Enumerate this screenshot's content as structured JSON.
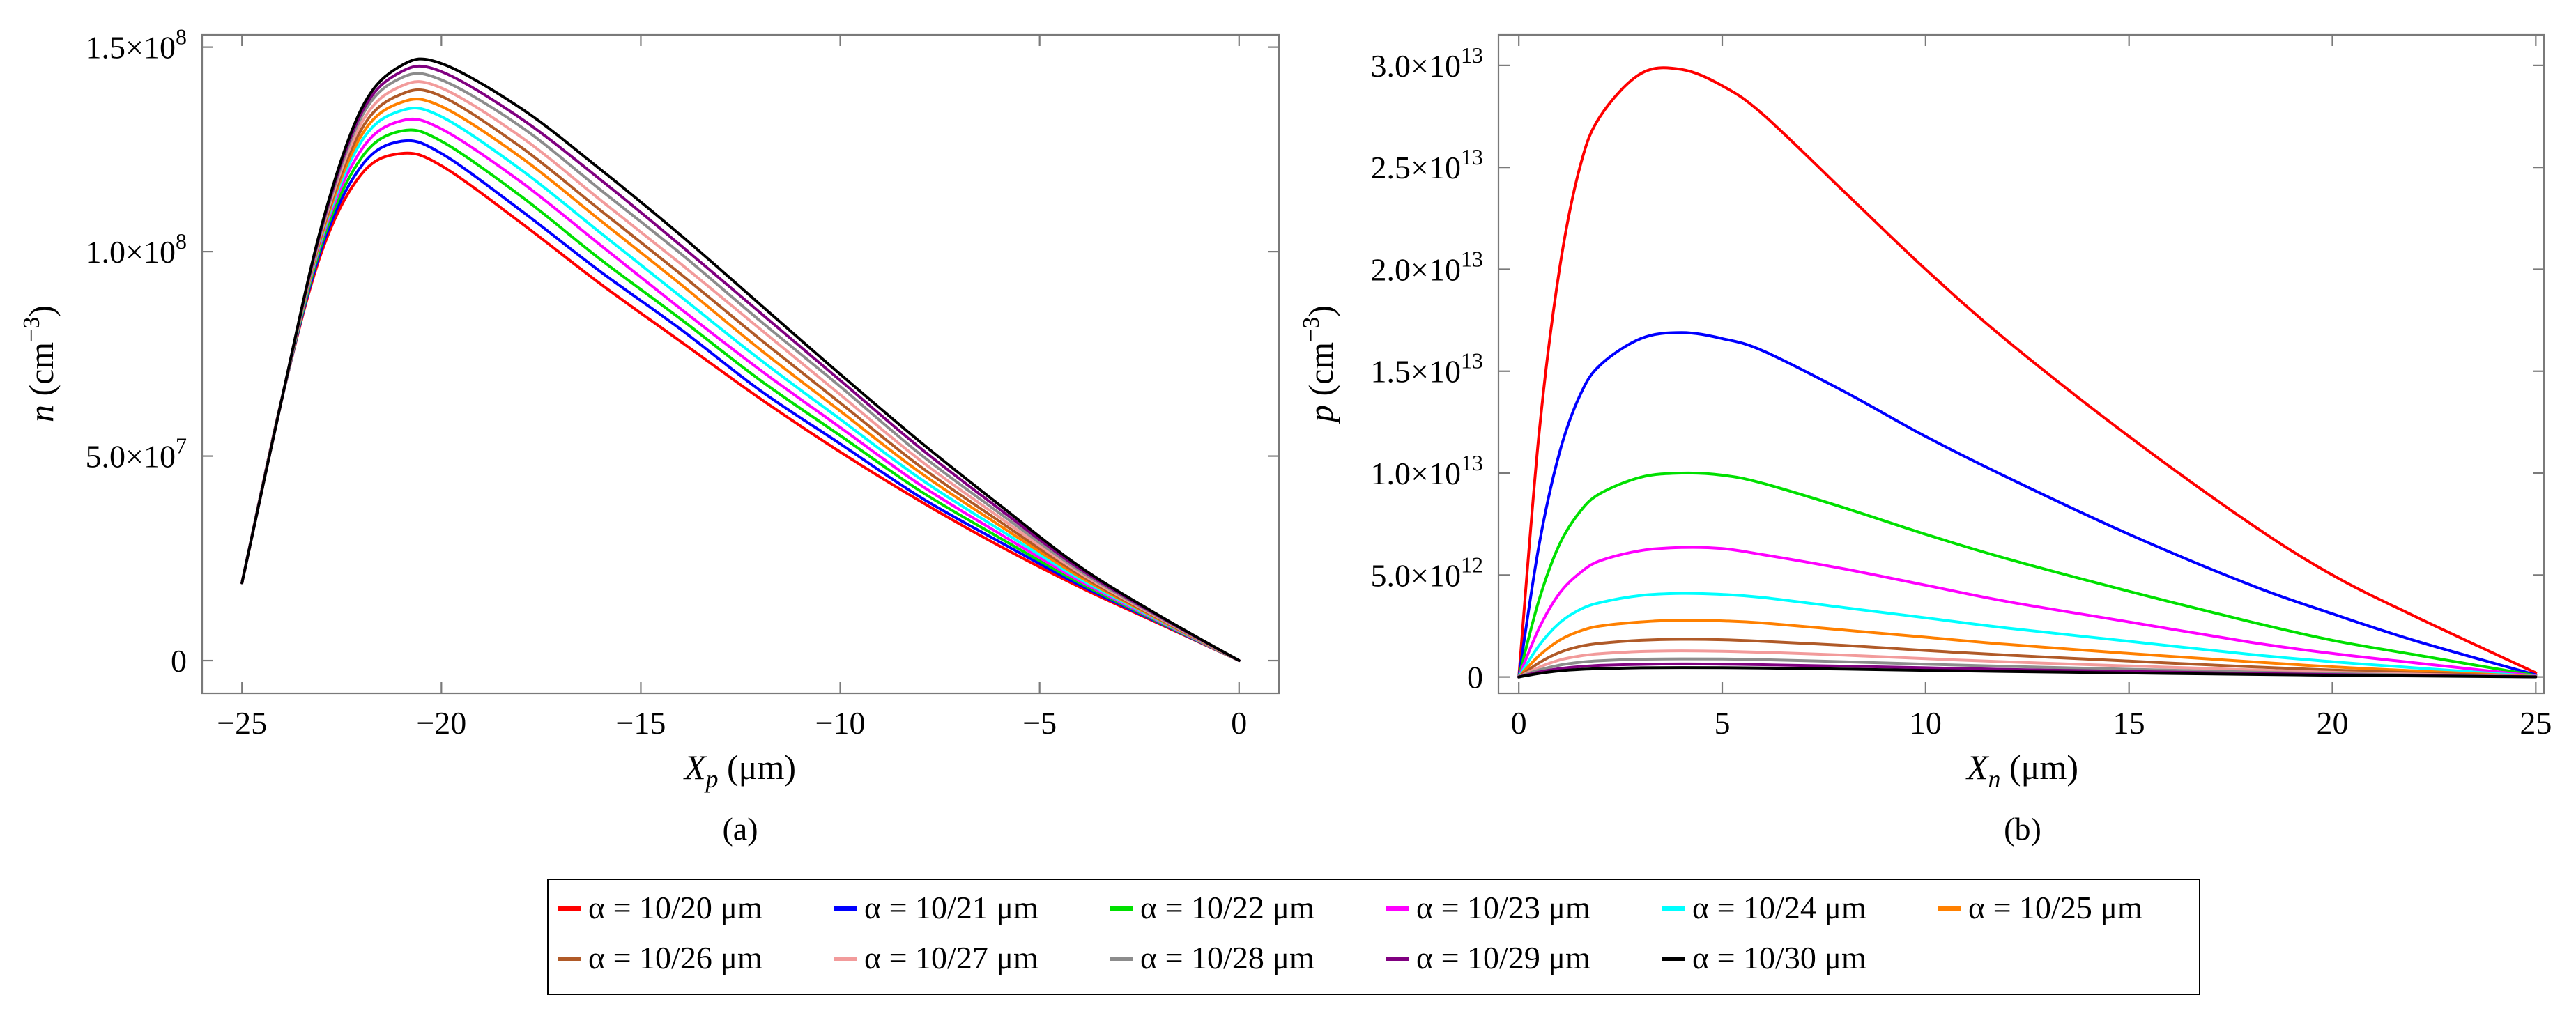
{
  "colors": [
    "#ff0000",
    "#0000ff",
    "#00e000",
    "#ff00ff",
    "#00ffff",
    "#ff8000",
    "#b05a28",
    "#f29b9b",
    "#8c8c8c",
    "#800080",
    "#000000"
  ],
  "legend": {
    "entries": [
      "α = 10/20 μm",
      "α = 10/21 μm",
      "α = 10/22 μm",
      "α = 10/23 μm",
      "α = 10/24 μm",
      "α = 10/25 μm",
      "α = 10/26 μm",
      "α = 10/27 μm",
      "α = 10/28 μm",
      "α = 10/29 μm",
      "α = 10/30 μm"
    ]
  },
  "chart_data": [
    {
      "type": "line",
      "caption": "(a)",
      "xlabel": "X",
      "xlabel_sub": "p",
      "xlabel_unit": " (μm)",
      "ylabel": "n",
      "ylabel_unit": " (cm",
      "ylabel_sup": "−3",
      "ylabel_close": ")",
      "xlim": [
        -26.0,
        1.0
      ],
      "ylim": [
        -8000000,
        153000000
      ],
      "x_ticks": [
        -25,
        -20,
        -15,
        -10,
        -5,
        0
      ],
      "x_tick_labels": [
        "−25",
        "−20",
        "−15",
        "−10",
        "−5",
        "0"
      ],
      "y_ticks": [
        0,
        50000000,
        100000000,
        150000000
      ],
      "y_tick_labels": [
        {
          "mantissa": "0",
          "power": ""
        },
        {
          "mantissa": "5.0×10",
          "power": "7"
        },
        {
          "mantissa": "1.0×10",
          "power": "8"
        },
        {
          "mantissa": "1.5×10",
          "power": "8"
        }
      ],
      "series": [
        {
          "name": "α = 10/20 μm",
          "x": [
            -25,
            -24,
            -23,
            -22,
            -21,
            -20,
            -18,
            -16,
            -14,
            -12,
            -10,
            -8,
            -6,
            -4,
            -2,
            0
          ],
          "values": [
            19000000,
            64000000,
            100000000,
            119000000,
            124000000,
            121000000,
            107000000,
            92000000,
            78000000,
            64000000,
            51000000,
            39000000,
            28000000,
            18000000,
            9000000,
            0
          ]
        },
        {
          "name": "α = 10/21 μm",
          "x": [
            -25,
            -24,
            -23,
            -22,
            -21,
            -20,
            -18,
            -16,
            -14,
            -12,
            -10,
            -8,
            -6,
            -4,
            -2,
            0
          ],
          "values": [
            19000000,
            64000000,
            101000000,
            121000000,
            127000000,
            124000000,
            110000000,
            95000000,
            81000000,
            66000000,
            53000000,
            40000000,
            29000000,
            18500000,
            9200000,
            0
          ]
        },
        {
          "name": "α = 10/22 μm",
          "x": [
            -25,
            -24,
            -23,
            -22,
            -21,
            -20,
            -18,
            -16,
            -14,
            -12,
            -10,
            -8,
            -6,
            -4,
            -2,
            0
          ],
          "values": [
            19000000,
            64000000,
            102000000,
            123000000,
            129500000,
            127000000,
            113500000,
            98000000,
            83500000,
            68500000,
            55000000,
            41500000,
            30000000,
            19000000,
            9400000,
            0
          ]
        },
        {
          "name": "α = 10/23 μm",
          "x": [
            -25,
            -24,
            -23,
            -22,
            -21,
            -20,
            -18,
            -16,
            -14,
            -12,
            -10,
            -8,
            -6,
            -4,
            -2,
            0
          ],
          "values": [
            19000000,
            64000000,
            103000000,
            125000000,
            132000000,
            130000000,
            117000000,
            101500000,
            86000000,
            71000000,
            57000000,
            43000000,
            31000000,
            19500000,
            9600000,
            0
          ]
        },
        {
          "name": "α = 10/24 μm",
          "x": [
            -25,
            -24,
            -23,
            -22,
            -21,
            -20,
            -18,
            -16,
            -14,
            -12,
            -10,
            -8,
            -6,
            -4,
            -2,
            0
          ],
          "values": [
            19000000,
            64000000,
            103500000,
            127000000,
            134500000,
            133000000,
            120000000,
            104500000,
            89000000,
            73500000,
            59000000,
            44500000,
            32000000,
            20000000,
            9800000,
            0
          ]
        },
        {
          "name": "α = 10/25 μm",
          "x": [
            -25,
            -24,
            -23,
            -22,
            -21,
            -20,
            -18,
            -16,
            -14,
            -12,
            -10,
            -8,
            -6,
            -4,
            -2,
            0
          ],
          "values": [
            19000000,
            64000000,
            104000000,
            128500000,
            136500000,
            135500000,
            123000000,
            107500000,
            92000000,
            76000000,
            61000000,
            46000000,
            33000000,
            20500000,
            10000000,
            0
          ]
        },
        {
          "name": "α = 10/26 μm",
          "x": [
            -25,
            -24,
            -23,
            -22,
            -21,
            -20,
            -18,
            -16,
            -14,
            -12,
            -10,
            -8,
            -6,
            -4,
            -2,
            0
          ],
          "values": [
            19000000,
            64000000,
            104500000,
            130000000,
            138500000,
            138000000,
            125500000,
            110000000,
            94500000,
            78500000,
            63000000,
            47500000,
            34000000,
            21000000,
            10200000,
            0
          ]
        },
        {
          "name": "α = 10/27 μm",
          "x": [
            -25,
            -24,
            -23,
            -22,
            -21,
            -20,
            -18,
            -16,
            -14,
            -12,
            -10,
            -8,
            -6,
            -4,
            -2,
            0
          ],
          "values": [
            19000000,
            64000000,
            105000000,
            131500000,
            140500000,
            140000000,
            128000000,
            112500000,
            97000000,
            81000000,
            65000000,
            49000000,
            35000000,
            21500000,
            10400000,
            0
          ]
        },
        {
          "name": "α = 10/28 μm",
          "x": [
            -25,
            -24,
            -23,
            -22,
            -21,
            -20,
            -18,
            -16,
            -14,
            -12,
            -10,
            -8,
            -6,
            -4,
            -2,
            0
          ],
          "values": [
            19000000,
            64000000,
            105500000,
            133000000,
            142500000,
            142000000,
            130500000,
            115000000,
            99500000,
            83000000,
            67000000,
            50500000,
            36000000,
            22000000,
            10600000,
            0
          ]
        },
        {
          "name": "α = 10/29 μm",
          "x": [
            -25,
            -24,
            -23,
            -22,
            -21,
            -20,
            -18,
            -16,
            -14,
            -12,
            -10,
            -8,
            -6,
            -4,
            -2,
            0
          ],
          "values": [
            19000000,
            64000000,
            106000000,
            134000000,
            144000000,
            144000000,
            132500000,
            117500000,
            101500000,
            85000000,
            68500000,
            52000000,
            37000000,
            22500000,
            10800000,
            0
          ]
        },
        {
          "name": "α = 10/30 μm",
          "x": [
            -25,
            -24,
            -23,
            -22,
            -21,
            -20,
            -18,
            -16,
            -14,
            -12,
            -10,
            -8,
            -6,
            -4,
            -2,
            0
          ],
          "values": [
            19000000,
            64000000,
            106500000,
            135000000,
            145500000,
            146000000,
            135000000,
            120000000,
            104000000,
            87000000,
            70000000,
            53500000,
            38000000,
            23000000,
            11000000,
            0
          ]
        }
      ]
    },
    {
      "type": "line",
      "caption": "(b)",
      "xlabel": "X",
      "xlabel_sub": "n",
      "xlabel_unit": " (μm)",
      "ylabel": "p",
      "ylabel_unit": " (cm",
      "ylabel_sup": "−3",
      "ylabel_close": ")",
      "xlim": [
        -0.5,
        25.2
      ],
      "ylim": [
        -800000000000,
        31500000000000
      ],
      "x_ticks": [
        0,
        5,
        10,
        15,
        20,
        25
      ],
      "x_tick_labels": [
        "0",
        "5",
        "10",
        "15",
        "20",
        "25"
      ],
      "y_ticks": [
        0,
        5000000000000,
        10000000000000,
        15000000000000,
        20000000000000,
        25000000000000,
        30000000000000
      ],
      "y_tick_labels": [
        {
          "mantissa": "0",
          "power": ""
        },
        {
          "mantissa": "5.0×10",
          "power": "12"
        },
        {
          "mantissa": "1.0×10",
          "power": "13"
        },
        {
          "mantissa": "1.5×10",
          "power": "13"
        },
        {
          "mantissa": "2.0×10",
          "power": "13"
        },
        {
          "mantissa": "2.5×10",
          "power": "13"
        },
        {
          "mantissa": "3.0×10",
          "power": "13"
        }
      ],
      "series": [
        {
          "name": "α = 10/20 μm",
          "x": [
            0,
            0.5,
            1,
            1.5,
            2,
            3,
            4,
            5,
            6,
            8,
            10,
            12,
            15,
            18,
            20,
            22,
            25
          ],
          "values": [
            0,
            12000000000000,
            20000000000000,
            25000000000000,
            27500000000000,
            29600000000000,
            29800000000000,
            29000000000000,
            27600000000000,
            23800000000000,
            20000000000000,
            16500000000000,
            11800000000000,
            7500000000000,
            5000000000000,
            3000000000000,
            200000000000
          ]
        },
        {
          "name": "α = 10/21 μm",
          "x": [
            0,
            0.5,
            1,
            1.5,
            2,
            3,
            4,
            5,
            6,
            8,
            10,
            12,
            15,
            18,
            20,
            22,
            25
          ],
          "values": [
            0,
            6500000000000,
            11000000000000,
            13800000000000,
            15300000000000,
            16600000000000,
            16900000000000,
            16600000000000,
            16000000000000,
            14000000000000,
            11800000000000,
            9800000000000,
            7000000000000,
            4500000000000,
            3100000000000,
            1800000000000,
            100000000000
          ]
        },
        {
          "name": "α = 10/22 μm",
          "x": [
            0,
            0.5,
            1,
            1.5,
            2,
            3,
            4,
            5,
            6,
            8,
            10,
            12,
            15,
            18,
            20,
            22,
            25
          ],
          "values": [
            0,
            3800000000000,
            6500000000000,
            8100000000000,
            9000000000000,
            9800000000000,
            10000000000000,
            9900000000000,
            9500000000000,
            8300000000000,
            7000000000000,
            5800000000000,
            4200000000000,
            2700000000000,
            1800000000000,
            1100000000000,
            70000000000
          ]
        },
        {
          "name": "α = 10/23 μm",
          "x": [
            0,
            0.5,
            1,
            1.5,
            2,
            3,
            4,
            5,
            6,
            8,
            10,
            12,
            15,
            18,
            20,
            22,
            25
          ],
          "values": [
            0,
            2400000000000,
            4100000000000,
            5100000000000,
            5700000000000,
            6200000000000,
            6350000000000,
            6300000000000,
            6000000000000,
            5300000000000,
            4500000000000,
            3700000000000,
            2700000000000,
            1700000000000,
            1150000000000,
            700000000000,
            50000000000
          ]
        },
        {
          "name": "α = 10/24 μm",
          "x": [
            0,
            0.5,
            1,
            1.5,
            2,
            3,
            4,
            5,
            6,
            8,
            10,
            12,
            15,
            18,
            20,
            22,
            25
          ],
          "values": [
            0,
            1550000000000,
            2650000000000,
            3300000000000,
            3650000000000,
            4000000000000,
            4100000000000,
            4050000000000,
            3900000000000,
            3400000000000,
            2900000000000,
            2400000000000,
            1750000000000,
            1100000000000,
            750000000000,
            450000000000,
            30000000000
          ]
        },
        {
          "name": "α = 10/25 μm",
          "x": [
            0,
            0.5,
            1,
            1.5,
            2,
            3,
            4,
            5,
            6,
            8,
            10,
            12,
            15,
            18,
            20,
            22,
            25
          ],
          "values": [
            0,
            1050000000000,
            1800000000000,
            2250000000000,
            2500000000000,
            2700000000000,
            2780000000000,
            2750000000000,
            2650000000000,
            2300000000000,
            1950000000000,
            1600000000000,
            1150000000000,
            750000000000,
            500000000000,
            300000000000,
            20000000000
          ]
        },
        {
          "name": "α = 10/26 μm",
          "x": [
            0,
            0.5,
            1,
            1.5,
            2,
            3,
            4,
            5,
            6,
            8,
            10,
            12,
            15,
            18,
            20,
            22,
            25
          ],
          "values": [
            0,
            700000000000,
            1200000000000,
            1500000000000,
            1650000000000,
            1800000000000,
            1850000000000,
            1830000000000,
            1750000000000,
            1550000000000,
            1300000000000,
            1070000000000,
            780000000000,
            500000000000,
            340000000000,
            200000000000,
            15000000000
          ]
        },
        {
          "name": "α = 10/27 μm",
          "x": [
            0,
            0.5,
            1,
            1.5,
            2,
            3,
            4,
            5,
            6,
            8,
            10,
            12,
            15,
            18,
            20,
            22,
            25
          ],
          "values": [
            0,
            480000000000,
            830000000000,
            1030000000000,
            1140000000000,
            1250000000000,
            1280000000000,
            1260000000000,
            1210000000000,
            1070000000000,
            900000000000,
            740000000000,
            540000000000,
            350000000000,
            230000000000,
            140000000000,
            10000000000
          ]
        },
        {
          "name": "α = 10/28 μm",
          "x": [
            0,
            0.5,
            1,
            1.5,
            2,
            3,
            4,
            5,
            6,
            8,
            10,
            12,
            15,
            18,
            20,
            22,
            25
          ],
          "values": [
            0,
            340000000000,
            580000000000,
            720000000000,
            800000000000,
            870000000000,
            890000000000,
            880000000000,
            850000000000,
            750000000000,
            630000000000,
            520000000000,
            380000000000,
            240000000000,
            165000000000,
            100000000000,
            7000000000
          ]
        },
        {
          "name": "α = 10/29 μm",
          "x": [
            0,
            0.5,
            1,
            1.5,
            2,
            3,
            4,
            5,
            6,
            8,
            10,
            12,
            15,
            18,
            20,
            22,
            25
          ],
          "values": [
            0,
            240000000000,
            410000000000,
            510000000000,
            570000000000,
            620000000000,
            640000000000,
            630000000000,
            600000000000,
            530000000000,
            450000000000,
            370000000000,
            270000000000,
            175000000000,
            118000000000,
            70000000000,
            5000000000
          ]
        },
        {
          "name": "α = 10/30 μm",
          "x": [
            0,
            0.5,
            1,
            1.5,
            2,
            3,
            4,
            5,
            6,
            8,
            10,
            12,
            15,
            18,
            20,
            22,
            25
          ],
          "values": [
            0,
            175000000000,
            300000000000,
            370000000000,
            410000000000,
            450000000000,
            460000000000,
            455000000000,
            440000000000,
            385000000000,
            325000000000,
            270000000000,
            195000000000,
            125000000000,
            85000000000,
            50000000000,
            4000000000
          ]
        }
      ]
    }
  ]
}
